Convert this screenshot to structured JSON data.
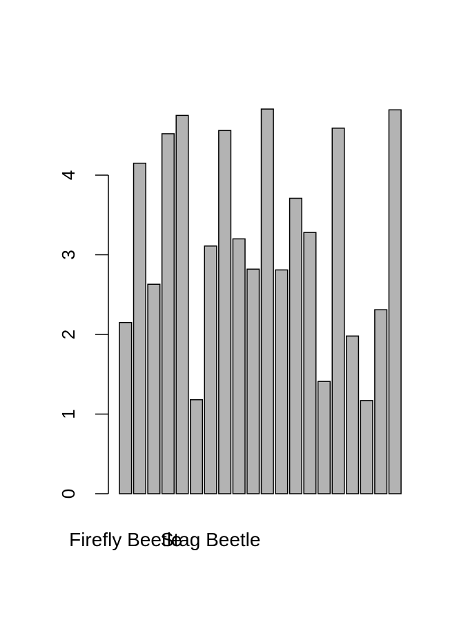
{
  "chart_data": {
    "type": "bar",
    "title": "",
    "xlabel": "",
    "ylabel": "",
    "ylim": [
      0,
      5
    ],
    "grid": false,
    "legend": "none",
    "bar_color": "#b3b3b3",
    "border_color": "#000000",
    "yticks": [
      0,
      1,
      2,
      3,
      4
    ],
    "categories": [
      "Firefly Beetle",
      "",
      "",
      "",
      "",
      "",
      "Stag Beetle",
      "",
      "",
      "",
      "",
      "",
      "",
      "",
      "",
      "",
      "",
      "",
      "",
      ""
    ],
    "values": [
      2.15,
      4.15,
      2.63,
      4.52,
      4.75,
      1.18,
      3.11,
      4.56,
      3.2,
      2.82,
      4.83,
      2.81,
      3.71,
      3.28,
      1.41,
      4.59,
      1.98,
      1.17,
      2.31,
      4.82
    ]
  }
}
